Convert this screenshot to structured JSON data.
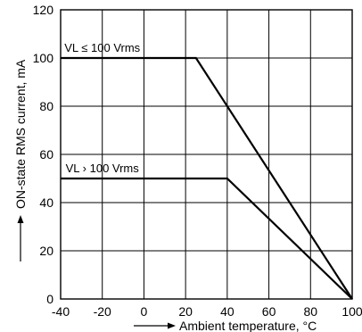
{
  "chart_data": {
    "type": "line",
    "xlabel": "Ambient temperature, °C",
    "ylabel": "ON-state RMS current, mA",
    "xlim": [
      -40,
      100
    ],
    "ylim": [
      0,
      120
    ],
    "xticks": [
      -40,
      -20,
      0,
      20,
      40,
      60,
      80,
      100
    ],
    "yticks": [
      0,
      20,
      40,
      60,
      80,
      100,
      120
    ],
    "grid": true,
    "series": [
      {
        "name": "VL ≤ 100 Vrms",
        "points": [
          [
            -40,
            100
          ],
          [
            25,
            100
          ],
          [
            100,
            0
          ]
        ]
      },
      {
        "name": "VL > 100 Vrms",
        "points": [
          [
            -40,
            50
          ],
          [
            40,
            50
          ],
          [
            100,
            0
          ]
        ]
      }
    ],
    "annotations": [
      {
        "text": "VL ≤ 100 Vrms",
        "x": -20,
        "y": 100
      },
      {
        "text": "VL › 100 Vrms",
        "x": -20,
        "y": 50
      }
    ]
  }
}
